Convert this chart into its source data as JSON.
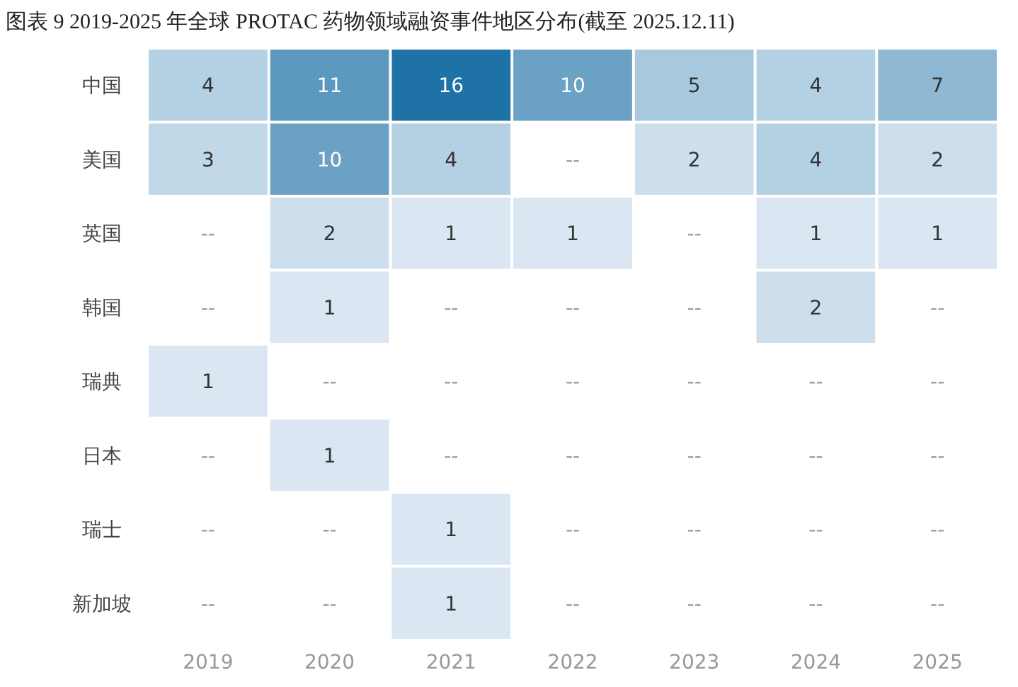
{
  "chart_data": {
    "type": "heatmap",
    "title": "图表 9 2019-2025 年全球 PROTAC 药物领域融资事件地区分布(截至 2025.12.11)",
    "categories": [
      "2019",
      "2020",
      "2021",
      "2022",
      "2023",
      "2024",
      "2025"
    ],
    "y_categories": [
      "中国",
      "美国",
      "英国",
      "韩国",
      "瑞典",
      "日本",
      "瑞士",
      "新加坡"
    ],
    "cells": [
      [
        4,
        11,
        16,
        10,
        5,
        4,
        7
      ],
      [
        3,
        10,
        4,
        null,
        2,
        4,
        2
      ],
      [
        null,
        2,
        1,
        1,
        null,
        1,
        1
      ],
      [
        null,
        1,
        null,
        null,
        null,
        2,
        null
      ],
      [
        1,
        null,
        null,
        null,
        null,
        null,
        null
      ],
      [
        null,
        1,
        null,
        null,
        null,
        null,
        null
      ],
      [
        null,
        null,
        1,
        null,
        null,
        null,
        null
      ],
      [
        null,
        null,
        1,
        null,
        null,
        null,
        null
      ]
    ],
    "cell_labels": [
      [
        "4",
        "11",
        "16",
        "10",
        "5",
        "4",
        "7"
      ],
      [
        "3",
        "10",
        "4",
        "--",
        "2",
        "4",
        "2"
      ],
      [
        "--",
        "2",
        "1",
        "1",
        "--",
        "1",
        "1"
      ],
      [
        "--",
        "1",
        "--",
        "--",
        "--",
        "2",
        "--"
      ],
      [
        "1",
        "--",
        "--",
        "--",
        "--",
        "--",
        "--"
      ],
      [
        "--",
        "1",
        "--",
        "--",
        "--",
        "--",
        "--"
      ],
      [
        "--",
        "--",
        "1",
        "--",
        "--",
        "--",
        "--"
      ],
      [
        "--",
        "--",
        "1",
        "--",
        "--",
        "--",
        "--"
      ]
    ]
  }
}
